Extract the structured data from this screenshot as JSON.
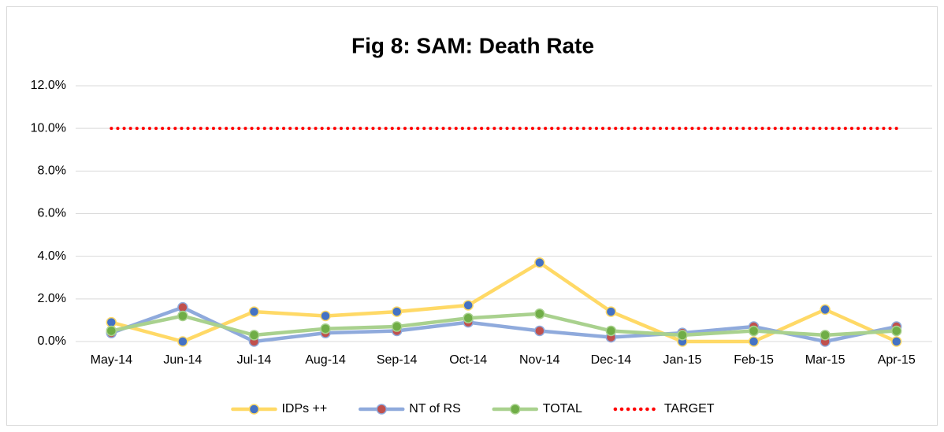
{
  "chart_data": {
    "type": "line",
    "title": "Fig 8: SAM: Death Rate",
    "categories": [
      "May-14",
      "Jun-14",
      "Jul-14",
      "Aug-14",
      "Sep-14",
      "Oct-14",
      "Nov-14",
      "Dec-14",
      "Jan-15",
      "Feb-15",
      "Mar-15",
      "Apr-15"
    ],
    "series": [
      {
        "name": "IDPs ++",
        "color": "#FFD966",
        "marker_color": "#4472C4",
        "values": [
          0.9,
          0.0,
          1.4,
          1.2,
          1.4,
          1.7,
          3.7,
          1.4,
          0.0,
          0.0,
          1.5,
          0.0
        ]
      },
      {
        "name": "NT of RS",
        "color": "#8FAADC",
        "marker_color": "#C0504D",
        "values": [
          0.4,
          1.6,
          0.0,
          0.4,
          0.5,
          0.9,
          0.5,
          0.2,
          0.4,
          0.7,
          0.0,
          0.7
        ]
      },
      {
        "name": "TOTAL",
        "color": "#A9D18E",
        "marker_color": "#70AD47",
        "values": [
          0.5,
          1.2,
          0.3,
          0.6,
          0.7,
          1.1,
          1.3,
          0.5,
          0.3,
          0.5,
          0.3,
          0.5
        ]
      },
      {
        "name": "TARGET",
        "color": "#FF0000",
        "line_style": "dotted",
        "values": [
          10,
          10,
          10,
          10,
          10,
          10,
          10,
          10,
          10,
          10,
          10,
          10
        ]
      }
    ],
    "ylim": [
      0,
      12
    ],
    "yticks": [
      {
        "value": 0,
        "label": "0.0%"
      },
      {
        "value": 2,
        "label": "2.0%"
      },
      {
        "value": 4,
        "label": "4.0%"
      },
      {
        "value": 6,
        "label": "6.0%"
      },
      {
        "value": 8,
        "label": "8.0%"
      },
      {
        "value": 10,
        "label": "10.0%"
      },
      {
        "value": 12,
        "label": "12.0%"
      }
    ],
    "grid": true,
    "legend": "bottom"
  }
}
